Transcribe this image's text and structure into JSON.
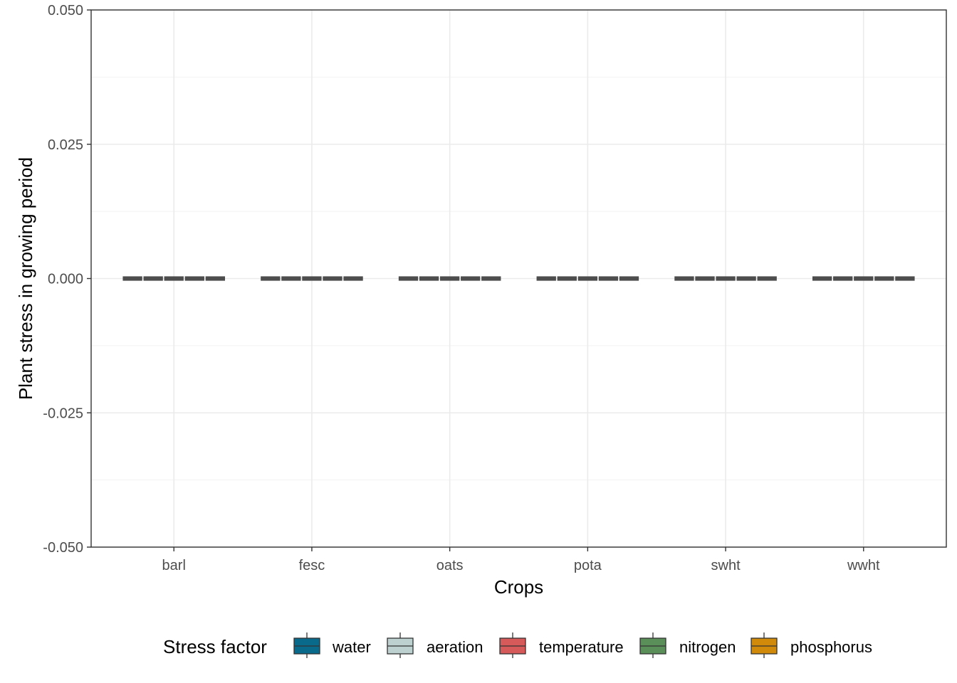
{
  "chart_data": {
    "type": "boxplot",
    "xlabel": "Crops",
    "ylabel": "Plant stress in growing period",
    "ylim": [
      -0.05,
      0.05
    ],
    "yticks": [
      -0.05,
      -0.025,
      0.0,
      0.025,
      0.05
    ],
    "ytick_labels": [
      "-0.050",
      "-0.025",
      "0.000",
      "0.025",
      "0.050"
    ],
    "categories": [
      "barl",
      "fesc",
      "oats",
      "pota",
      "swht",
      "wwht"
    ],
    "series": [
      {
        "name": "water",
        "color": "#0a6a8c",
        "values": [
          0,
          0,
          0,
          0,
          0,
          0
        ]
      },
      {
        "name": "aeration",
        "color": "#bcd1d0",
        "values": [
          0,
          0,
          0,
          0,
          0,
          0
        ]
      },
      {
        "name": "temperature",
        "color": "#d65a5a",
        "values": [
          0,
          0,
          0,
          0,
          0,
          0
        ]
      },
      {
        "name": "nitrogen",
        "color": "#5a8f5a",
        "values": [
          0,
          0,
          0,
          0,
          0,
          0
        ]
      },
      {
        "name": "phosphorus",
        "color": "#d28a0a",
        "values": [
          0,
          0,
          0,
          0,
          0,
          0
        ]
      }
    ],
    "legend": {
      "title": "Stress factor",
      "position": "bottom"
    },
    "grid": true
  }
}
